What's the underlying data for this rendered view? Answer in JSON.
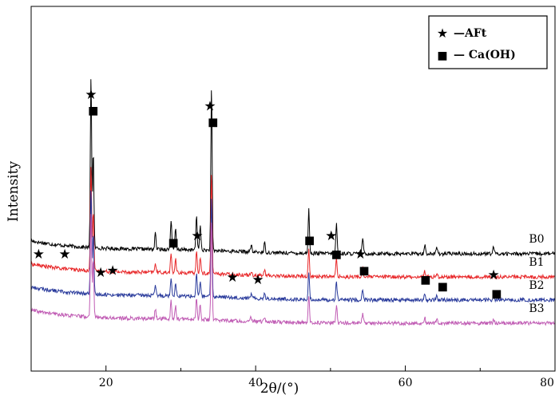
{
  "chart_data": {
    "type": "line",
    "xlabel": "2θ/(°)",
    "ylabel": "Intensity",
    "xlim": [
      10,
      80
    ],
    "x_ticks": [
      20,
      40,
      60,
      80
    ],
    "x_tick_labels": [
      "20",
      "40",
      "60",
      "80"
    ],
    "y_ticks_shown": false,
    "legend": {
      "position": "top-right",
      "entries": [
        {
          "marker": "★",
          "label": "—AFt"
        },
        {
          "marker": "■",
          "label": "— Ca(OH)"
        }
      ]
    },
    "series": [
      {
        "name": "B0",
        "color": "#000000",
        "baseline_offset": 3.0
      },
      {
        "name": "B1",
        "color": "#e8282a",
        "baseline_offset": 2.0
      },
      {
        "name": "B2",
        "color": "#2a3b9c",
        "baseline_offset": 1.0
      },
      {
        "name": "B3",
        "color": "#c05cb4",
        "baseline_offset": 0.0
      }
    ],
    "peaks": [
      {
        "x": 18.0,
        "height": 7.5
      },
      {
        "x": 18.3,
        "height": 4.2
      },
      {
        "x": 26.6,
        "height": 0.7
      },
      {
        "x": 28.7,
        "height": 1.3
      },
      {
        "x": 29.3,
        "height": 0.9
      },
      {
        "x": 32.1,
        "height": 1.5
      },
      {
        "x": 32.6,
        "height": 1.1
      },
      {
        "x": 34.1,
        "height": 7.1
      },
      {
        "x": 39.4,
        "height": 0.3
      },
      {
        "x": 41.2,
        "height": 0.4
      },
      {
        "x": 47.1,
        "height": 1.9
      },
      {
        "x": 50.8,
        "height": 1.3
      },
      {
        "x": 54.3,
        "height": 0.7
      },
      {
        "x": 62.6,
        "height": 0.4
      },
      {
        "x": 64.2,
        "height": 0.3
      },
      {
        "x": 71.8,
        "height": 0.3
      }
    ],
    "peak_markers": [
      {
        "symbol": "★",
        "phase": "AFt",
        "x": 11.0,
        "level": 3.0
      },
      {
        "symbol": "★",
        "phase": "AFt",
        "x": 14.5,
        "level": 3.0
      },
      {
        "symbol": "★",
        "phase": "AFt",
        "x": 19.3,
        "level": 2.2
      },
      {
        "symbol": "★",
        "phase": "AFt",
        "x": 20.9,
        "level": 2.3
      },
      {
        "symbol": "★",
        "phase": "AFt",
        "x": 18.0,
        "level": 9.9
      },
      {
        "symbol": "■",
        "phase": "Ca(OH)",
        "x": 18.3,
        "level": 9.2
      },
      {
        "symbol": "■",
        "phase": "Ca(OH)",
        "x": 29.0,
        "level": 3.5
      },
      {
        "symbol": "★",
        "phase": "AFt",
        "x": 32.2,
        "level": 3.8
      },
      {
        "symbol": "★",
        "phase": "AFt",
        "x": 33.9,
        "level": 9.4
      },
      {
        "symbol": "■",
        "phase": "Ca(OH)",
        "x": 34.3,
        "level": 8.7
      },
      {
        "symbol": "★",
        "phase": "AFt",
        "x": 36.9,
        "level": 2.0
      },
      {
        "symbol": "★",
        "phase": "AFt",
        "x": 40.3,
        "level": 1.9
      },
      {
        "symbol": "■",
        "phase": "Ca(OH)",
        "x": 47.2,
        "level": 3.6
      },
      {
        "symbol": "★",
        "phase": "AFt",
        "x": 50.1,
        "level": 3.8
      },
      {
        "symbol": "■",
        "phase": "Ca(OH)",
        "x": 50.8,
        "level": 3.0
      },
      {
        "symbol": "★",
        "phase": "AFt",
        "x": 54.0,
        "level": 3.0
      },
      {
        "symbol": "■",
        "phase": "Ca(OH)",
        "x": 54.5,
        "level": 2.3
      },
      {
        "symbol": "■",
        "phase": "Ca(OH)",
        "x": 62.7,
        "level": 1.9
      },
      {
        "symbol": "■",
        "phase": "Ca(OH)",
        "x": 65.0,
        "level": 1.6
      },
      {
        "symbol": "★",
        "phase": "AFt",
        "x": 71.8,
        "level": 2.1
      },
      {
        "symbol": "■",
        "phase": "Ca(OH)",
        "x": 72.2,
        "level": 1.3
      }
    ]
  }
}
